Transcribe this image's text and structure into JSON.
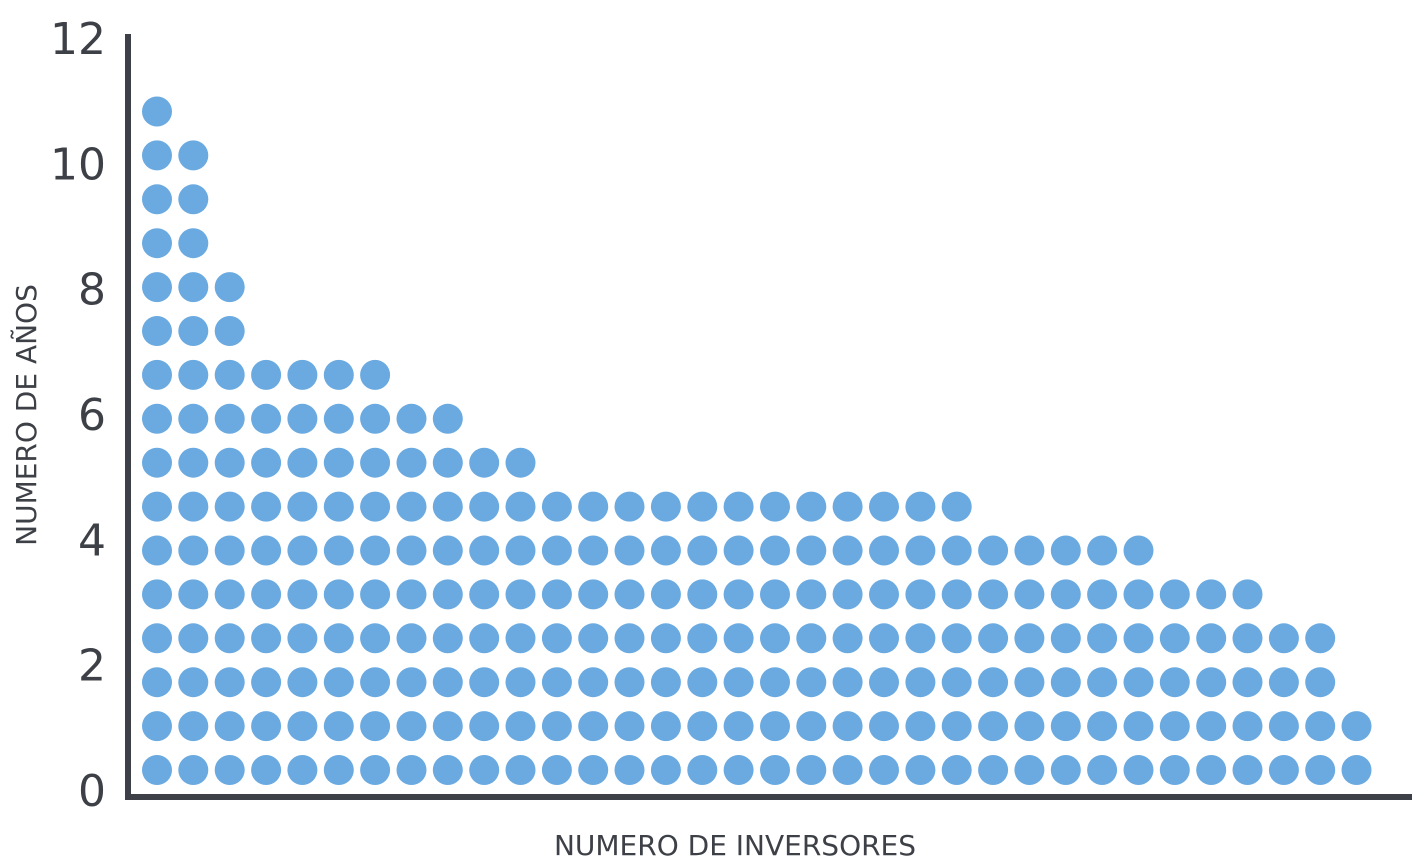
{
  "chart_data": {
    "type": "scatter",
    "xlabel": "NUMERO DE INVERSORES",
    "ylabel": "NUMERO DE AÑOS",
    "y_ticks": [
      "0",
      "2",
      "4",
      "6",
      "8",
      "10",
      "12"
    ],
    "ylim": [
      0,
      12
    ],
    "grid": false,
    "dot_color": "#6aaae0",
    "axis_color": "#3d4046",
    "column_heights": [
      16,
      15,
      12,
      10,
      10,
      10,
      10,
      9,
      9,
      8,
      8,
      7,
      7,
      7,
      7,
      7,
      7,
      7,
      7,
      7,
      7,
      7,
      7,
      6,
      6,
      6,
      6,
      6,
      5,
      5,
      5,
      4,
      4,
      2
    ]
  }
}
